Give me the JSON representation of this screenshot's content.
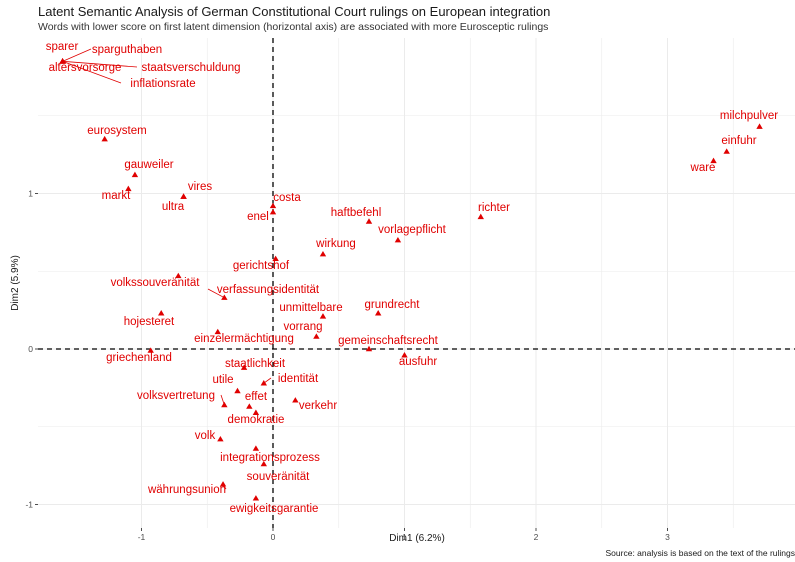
{
  "title": "Latent Semantic Analysis of German Constitutional Court rulings on European integration",
  "subtitle": "Words with lower score on first latent dimension (horizontal axis) are associated with more Eurosceptic rulings",
  "caption": "Source: analysis is based on the text of the rulings",
  "colors": {
    "point": "#e00000",
    "grid": "#ebebeb",
    "axis_tick": "#4d4d4d",
    "refline": "#000000"
  },
  "chart_data": {
    "type": "scatter",
    "xlabel": "Dim1 (6.2%)",
    "ylabel": "Dim2 (5.9%)",
    "xlim": [
      -1.72,
      3.9
    ],
    "ylim": [
      -1.15,
      1.95
    ],
    "xticks": [
      -1,
      0,
      1,
      2,
      3
    ],
    "yticks": [
      -1,
      0,
      1
    ],
    "xtick_labels": [
      "-1",
      "0",
      "1",
      "2",
      "3"
    ],
    "ytick_labels": [
      "-1",
      "0",
      "1"
    ],
    "grid": true,
    "reference_lines": {
      "x": 0,
      "y": 0
    },
    "points": [
      {
        "label": "sparer",
        "x": -1.6,
        "y": 1.85
      },
      {
        "label": "sparguthaben",
        "x": -1.6,
        "y": 1.85
      },
      {
        "label": "altersvorsorge",
        "x": -1.6,
        "y": 1.85
      },
      {
        "label": "staatsverschuldung",
        "x": -1.6,
        "y": 1.85
      },
      {
        "label": "inflationsrate",
        "x": -1.6,
        "y": 1.85
      },
      {
        "label": "eurosystem",
        "x": -1.28,
        "y": 1.35
      },
      {
        "label": "gauweiler",
        "x": -1.05,
        "y": 1.12
      },
      {
        "label": "markt",
        "x": -1.1,
        "y": 1.03
      },
      {
        "label": "vires",
        "x": -0.68,
        "y": 0.98
      },
      {
        "label": "ultra",
        "x": -0.68,
        "y": 0.98
      },
      {
        "label": "costa",
        "x": 0.0,
        "y": 0.92
      },
      {
        "label": "enel",
        "x": 0.0,
        "y": 0.88
      },
      {
        "label": "haftbefehl",
        "x": 0.73,
        "y": 0.82
      },
      {
        "label": "richter",
        "x": 1.58,
        "y": 0.85
      },
      {
        "label": "vorlagepflicht",
        "x": 0.95,
        "y": 0.7
      },
      {
        "label": "wirkung",
        "x": 0.38,
        "y": 0.61
      },
      {
        "label": "gerichtshof",
        "x": 0.02,
        "y": 0.58
      },
      {
        "label": "volkssouveränität",
        "x": -0.72,
        "y": 0.47
      },
      {
        "label": "verfassungsidentität",
        "x": -0.37,
        "y": 0.33
      },
      {
        "label": "unmittelbare",
        "x": 0.38,
        "y": 0.21
      },
      {
        "label": "grundrecht",
        "x": 0.8,
        "y": 0.23
      },
      {
        "label": "hojesteret",
        "x": -0.85,
        "y": 0.23
      },
      {
        "label": "vorrang",
        "x": 0.33,
        "y": 0.08
      },
      {
        "label": "einzelermächtigung",
        "x": -0.42,
        "y": 0.11
      },
      {
        "label": "gemeinschaftsrecht",
        "x": 0.73,
        "y": 0.0
      },
      {
        "label": "griechenland",
        "x": -0.93,
        "y": -0.01
      },
      {
        "label": "ausfuhr",
        "x": 1.0,
        "y": -0.04
      },
      {
        "label": "staatlichkeit",
        "x": -0.22,
        "y": -0.12
      },
      {
        "label": "utile",
        "x": -0.27,
        "y": -0.27
      },
      {
        "label": "identität",
        "x": -0.07,
        "y": -0.22
      },
      {
        "label": "effet",
        "x": -0.18,
        "y": -0.37
      },
      {
        "label": "volksvertretung",
        "x": -0.37,
        "y": -0.36
      },
      {
        "label": "verkehr",
        "x": 0.17,
        "y": -0.33
      },
      {
        "label": "demokratie",
        "x": -0.13,
        "y": -0.41
      },
      {
        "label": "volk",
        "x": -0.4,
        "y": -0.58
      },
      {
        "label": "integrationsprozess",
        "x": -0.13,
        "y": -0.64
      },
      {
        "label": "souveränität",
        "x": -0.07,
        "y": -0.74
      },
      {
        "label": "währungsunion",
        "x": -0.38,
        "y": -0.87
      },
      {
        "label": "ewigkeitsgarantie",
        "x": -0.13,
        "y": -0.96
      },
      {
        "label": "milchpulver",
        "x": 3.7,
        "y": 1.43
      },
      {
        "label": "einfuhr",
        "x": 3.45,
        "y": 1.27
      },
      {
        "label": "ware",
        "x": 3.35,
        "y": 1.21
      }
    ]
  }
}
